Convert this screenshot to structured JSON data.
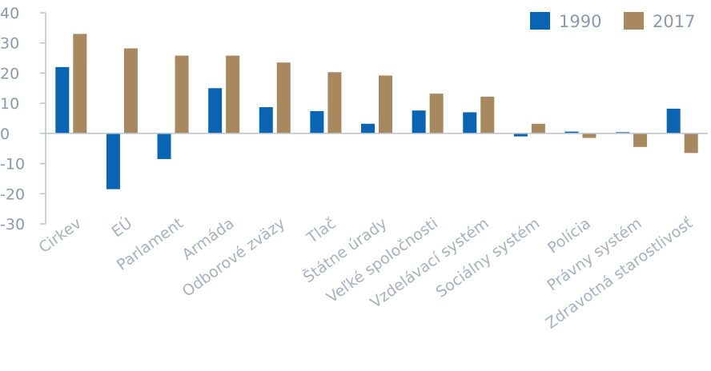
{
  "chart_data": {
    "type": "bar",
    "categories": [
      "Cirkev",
      "EÚ",
      "Parlament",
      "Armáda",
      "Odborové zväzy",
      "Tlač",
      "Štátne úrady",
      "Veľké spoločnosti",
      "Vzdelávací systém",
      "Sociálny systém",
      "Polícia",
      "Právny systém",
      "Zdravotná starostlivosť"
    ],
    "series": [
      {
        "name": "1990",
        "color": "#0a64b4",
        "values": [
          22,
          -18.5,
          -8.5,
          15,
          8.7,
          7.4,
          3.2,
          7.6,
          7,
          -1,
          0.6,
          0.4,
          8.2
        ]
      },
      {
        "name": "2017",
        "color": "#a8885e",
        "values": [
          33,
          28.2,
          25.8,
          25.8,
          23.5,
          20.3,
          19.2,
          13.2,
          12.2,
          3.2,
          -1.5,
          -4.5,
          -6.5
        ]
      }
    ],
    "yticks": [
      40,
      30,
      20,
      10,
      0,
      -10,
      -20,
      -30
    ],
    "ylim": [
      -30,
      40
    ],
    "xlabel": "",
    "ylabel": "",
    "title": "",
    "legend_position": "top-right",
    "grid": false
  }
}
